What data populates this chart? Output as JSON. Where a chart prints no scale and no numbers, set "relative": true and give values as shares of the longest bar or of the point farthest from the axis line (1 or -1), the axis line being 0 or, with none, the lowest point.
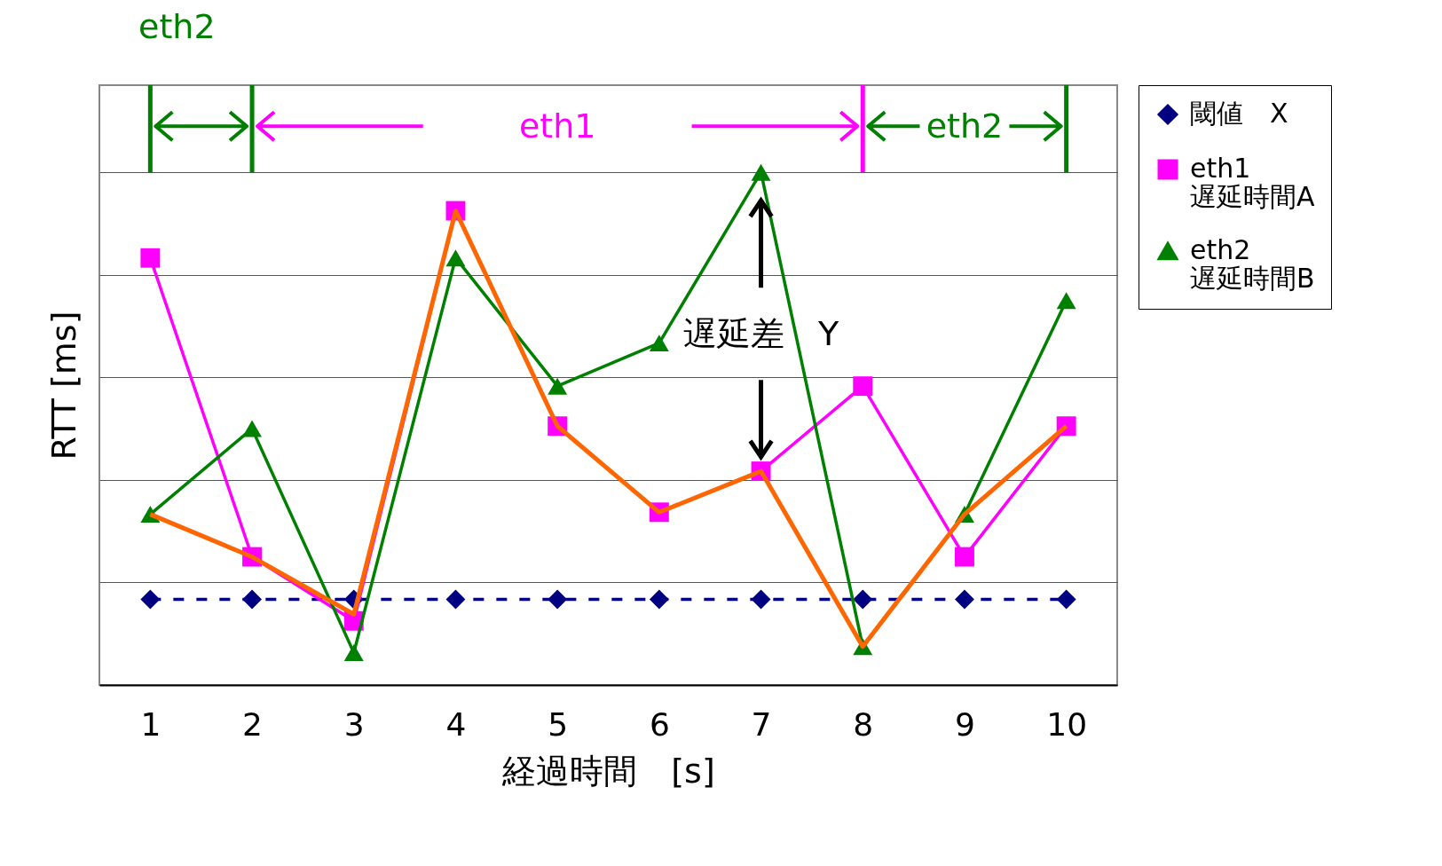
{
  "chart_data": {
    "type": "line",
    "relative": true,
    "xlabel": "経過時間　[s]",
    "ylabel": "RTT [ms]",
    "x": [
      1,
      2,
      3,
      4,
      5,
      6,
      7,
      8,
      9,
      10
    ],
    "xlim": [
      0.5,
      10.5
    ],
    "xticks": [
      1,
      2,
      3,
      4,
      5,
      6,
      7,
      8,
      9,
      10
    ],
    "series": [
      {
        "name": "閾値　X",
        "color": "#000080",
        "marker": "diamond",
        "line_style": "dashed",
        "values": [
          0.167,
          0.167,
          0.167,
          0.167,
          0.167,
          0.167,
          0.167,
          0.167,
          0.167,
          0.167
        ]
      },
      {
        "name": "eth1 遅延時間A",
        "color": "#ff00ff",
        "marker": "square",
        "line_style": "solid",
        "values": [
          0.833,
          0.25,
          0.125,
          0.925,
          0.505,
          0.337,
          0.417,
          0.583,
          0.25,
          0.505
        ]
      },
      {
        "name": "eth2 遅延時間B",
        "color": "#008000",
        "marker": "triangle",
        "line_style": "solid",
        "values": [
          0.333,
          0.5,
          0.063,
          0.833,
          0.583,
          0.667,
          1,
          0.075,
          0.333,
          0.75
        ]
      },
      {
        "color": "#ff6600",
        "marker": "none",
        "line_style": "solid",
        "values": [
          0.333,
          0.25,
          0.138,
          0.925,
          0.505,
          0.337,
          0.417,
          0.075,
          0.333,
          0.505
        ]
      }
    ],
    "annotations": [
      "eth2",
      "eth1",
      "eth2",
      "遅延差　Y"
    ],
    "grid": "y",
    "legend": "right"
  }
}
